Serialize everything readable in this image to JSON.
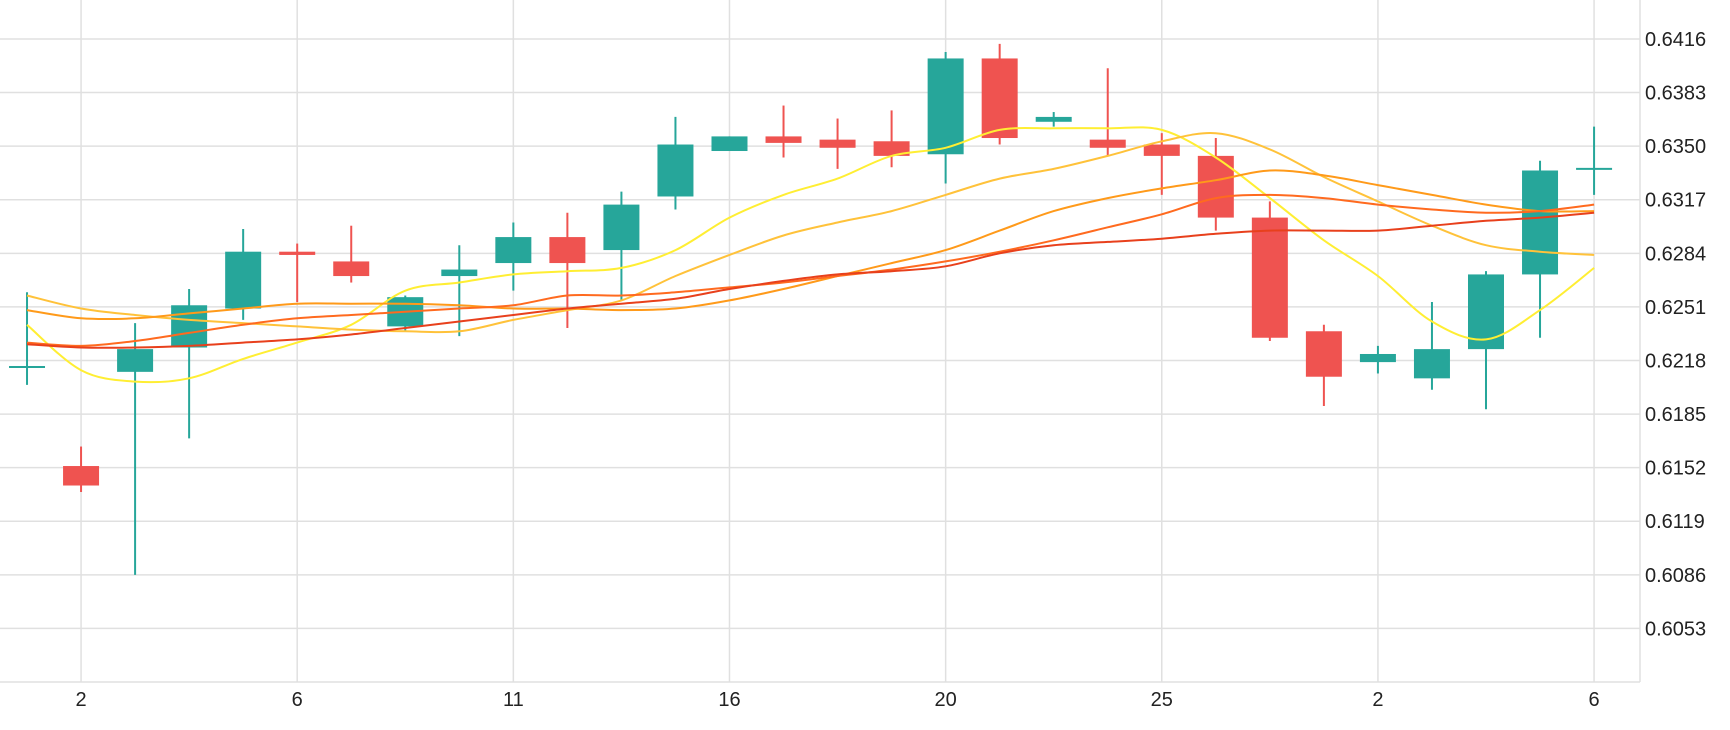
{
  "chart_data": {
    "type": "candlestick",
    "title": "",
    "xlabel": "",
    "ylabel": "",
    "grid": true,
    "ylim": [
      6020,
      6440
    ],
    "y_ticks": [
      "0.6053",
      "0.6086",
      "0.6119",
      "0.6152",
      "0.6185",
      "0.6218",
      "0.6251",
      "0.6284",
      "0.6317",
      "0.6350",
      "0.6383",
      "0.6416"
    ],
    "y_tick_values": [
      6053,
      6086,
      6119,
      6152,
      6185,
      6218,
      6251,
      6284,
      6317,
      6350,
      6383,
      6416
    ],
    "x_tick_indices": [
      1,
      5,
      9,
      13,
      17,
      21,
      25,
      29
    ],
    "x_ticks": [
      "2",
      "6",
      "11",
      "16",
      "20",
      "25",
      "2",
      "6"
    ],
    "x_range": [
      -0.5,
      29.85
    ],
    "candles": [
      {
        "open": 6214,
        "high": 6260,
        "low": 6203,
        "close": 6214
      },
      {
        "open": 6153,
        "high": 6165,
        "low": 6137,
        "close": 6141
      },
      {
        "open": 6211,
        "high": 6241,
        "low": 6086,
        "close": 6225
      },
      {
        "open": 6226,
        "high": 6262,
        "low": 6170,
        "close": 6252
      },
      {
        "open": 6250,
        "high": 6299,
        "low": 6243,
        "close": 6285
      },
      {
        "open": 6285,
        "high": 6290,
        "low": 6254,
        "close": 6283
      },
      {
        "open": 6279,
        "high": 6301,
        "low": 6266,
        "close": 6270
      },
      {
        "open": 6239,
        "high": 6258,
        "low": 6236,
        "close": 6257
      },
      {
        "open": 6270,
        "high": 6289,
        "low": 6233,
        "close": 6274
      },
      {
        "open": 6278,
        "high": 6303,
        "low": 6261,
        "close": 6294
      },
      {
        "open": 6294,
        "high": 6309,
        "low": 6238,
        "close": 6278
      },
      {
        "open": 6286,
        "high": 6322,
        "low": 6255,
        "close": 6314
      },
      {
        "open": 6319,
        "high": 6368,
        "low": 6311,
        "close": 6351
      },
      {
        "open": 6347,
        "high": 6356,
        "low": 6347,
        "close": 6356
      },
      {
        "open": 6356,
        "high": 6375,
        "low": 6343,
        "close": 6352
      },
      {
        "open": 6354,
        "high": 6367,
        "low": 6336,
        "close": 6349
      },
      {
        "open": 6353,
        "high": 6372,
        "low": 6337,
        "close": 6344
      },
      {
        "open": 6345,
        "high": 6408,
        "low": 6327,
        "close": 6404
      },
      {
        "open": 6404,
        "high": 6413,
        "low": 6351,
        "close": 6355
      },
      {
        "open": 6365,
        "high": 6371,
        "low": 6362,
        "close": 6368
      },
      {
        "open": 6354,
        "high": 6398,
        "low": 6344,
        "close": 6349
      },
      {
        "open": 6351,
        "high": 6358,
        "low": 6320,
        "close": 6344
      },
      {
        "open": 6344,
        "high": 6355,
        "low": 6298,
        "close": 6306
      },
      {
        "open": 6306,
        "high": 6316,
        "low": 6230,
        "close": 6232
      },
      {
        "open": 6236,
        "high": 6240,
        "low": 6190,
        "close": 6208
      },
      {
        "open": 6217,
        "high": 6227,
        "low": 6210,
        "close": 6222
      },
      {
        "open": 6207,
        "high": 6254,
        "low": 6200,
        "close": 6225
      },
      {
        "open": 6225,
        "high": 6273,
        "low": 6188,
        "close": 6271
      },
      {
        "open": 6271,
        "high": 6341,
        "low": 6232,
        "close": 6335
      },
      {
        "open": 6336,
        "high": 6362,
        "low": 6320,
        "close": 6336
      }
    ],
    "series": [
      {
        "color": "#ffee33",
        "values": [
          6240,
          6212,
          6205,
          6207,
          6219,
          6229,
          6240,
          6261,
          6266,
          6271,
          6273,
          6275,
          6286,
          6306,
          6320,
          6330,
          6344,
          6349,
          6360,
          6361,
          6361,
          6360,
          6343,
          6318,
          6292,
          6270,
          6242,
          6231,
          6249,
          6275
        ]
      },
      {
        "color": "#ffc23a",
        "values": [
          6258,
          6250,
          6246,
          6243,
          6241,
          6239,
          6237,
          6236,
          6236,
          6243,
          6249,
          6255,
          6270,
          6283,
          6295,
          6303,
          6310,
          6320,
          6330,
          6336,
          6344,
          6353,
          6358,
          6348,
          6331,
          6316,
          6301,
          6289,
          6285,
          6283
        ]
      },
      {
        "color": "#ff9a1a",
        "values": [
          6249,
          6244,
          6244,
          6247,
          6250,
          6253,
          6253,
          6253,
          6252,
          6250,
          6250,
          6249,
          6250,
          6255,
          6262,
          6270,
          6278,
          6286,
          6298,
          6310,
          6318,
          6324,
          6329,
          6335,
          6332,
          6326,
          6320,
          6314,
          6310,
          6310
        ]
      },
      {
        "color": "#ff6a1f",
        "values": [
          6229,
          6227,
          6230,
          6235,
          6240,
          6244,
          6246,
          6248,
          6250,
          6252,
          6258,
          6258,
          6260,
          6263,
          6266,
          6270,
          6274,
          6279,
          6285,
          6292,
          6300,
          6308,
          6318,
          6320,
          6318,
          6314,
          6311,
          6309,
          6310,
          6314
        ]
      },
      {
        "color": "#e8401c",
        "values": [
          6228,
          6226,
          6226,
          6227,
          6229,
          6231,
          6234,
          6238,
          6242,
          6246,
          6250,
          6253,
          6256,
          6262,
          6267,
          6271,
          6273,
          6276,
          6284,
          6289,
          6291,
          6293,
          6296,
          6298,
          6298,
          6298,
          6301,
          6304,
          6306,
          6309
        ]
      }
    ]
  },
  "colors": {
    "up": "#26a69a",
    "down": "#ef5350",
    "grid": "#e0e0e0",
    "axis_text": "#222222"
  }
}
